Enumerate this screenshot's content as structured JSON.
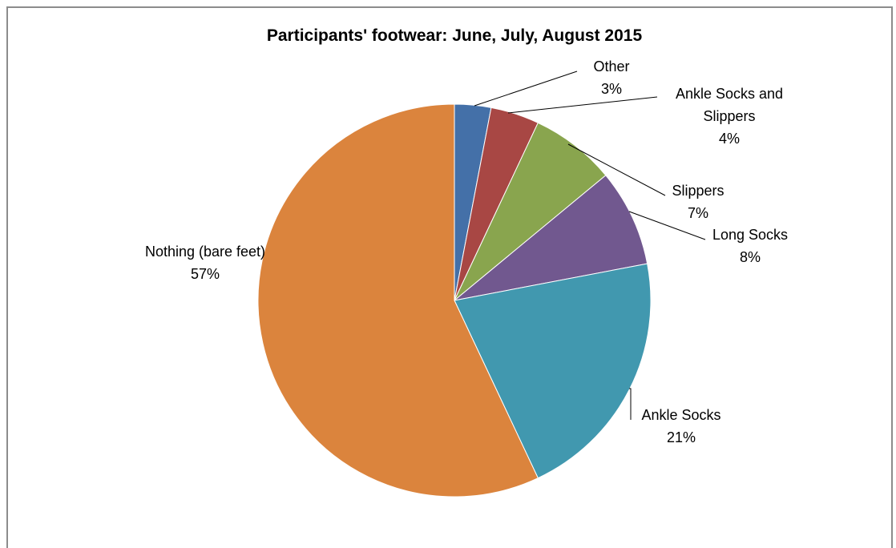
{
  "chart_data": {
    "type": "pie",
    "title": "Participants' footwear: June, July, August 2015",
    "start": "top, clockwise",
    "slices": [
      {
        "label_lines": [
          "Other"
        ],
        "value": 3,
        "value_label": "3%",
        "color": "#4470a8"
      },
      {
        "label_lines": [
          "Ankle Socks and",
          "Slippers"
        ],
        "value": 4,
        "value_label": "4%",
        "color": "#a84744"
      },
      {
        "label_lines": [
          "Slippers"
        ],
        "value": 7,
        "value_label": "7%",
        "color": "#89a54e"
      },
      {
        "label_lines": [
          "Long Socks"
        ],
        "value": 8,
        "value_label": "8%",
        "color": "#71588f"
      },
      {
        "label_lines": [
          "Ankle Socks"
        ],
        "value": 21,
        "value_label": "21%",
        "color": "#4198af"
      },
      {
        "label_lines": [
          "Nothing (bare feet)"
        ],
        "value": 57,
        "value_label": "57%",
        "color": "#db843d"
      }
    ]
  }
}
